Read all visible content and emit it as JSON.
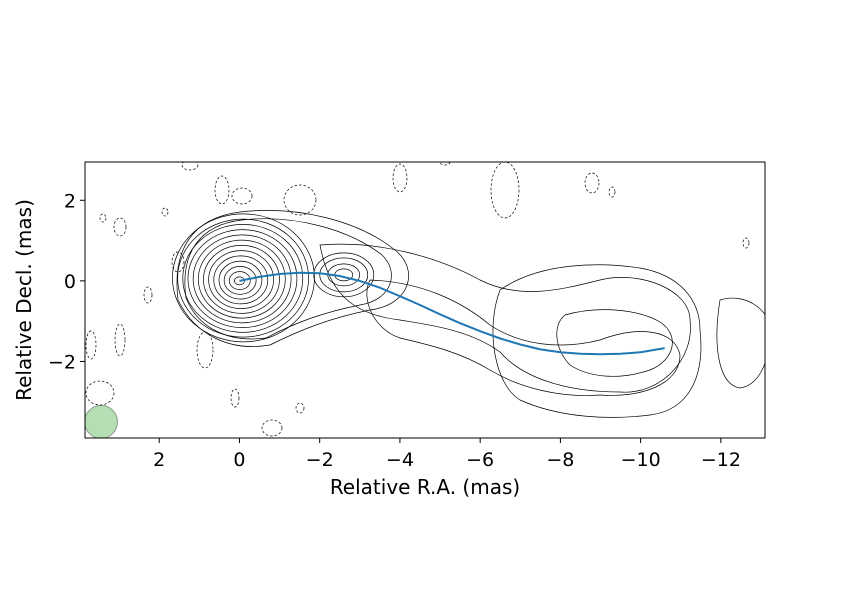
{
  "chart_data": {
    "type": "contour",
    "xlabel": "Relative R.A. (mas)",
    "ylabel": "Relative Decl. (mas)",
    "xlim": [
      3.85,
      -13.1
    ],
    "ylim": [
      -3.9,
      2.95
    ],
    "x_ticks": [
      {
        "value": 2,
        "label": "2"
      },
      {
        "value": 0,
        "label": "0"
      },
      {
        "value": -2,
        "label": "−2"
      },
      {
        "value": -4,
        "label": "−4"
      },
      {
        "value": -6,
        "label": "−6"
      },
      {
        "value": -8,
        "label": "−8"
      },
      {
        "value": -10,
        "label": "−10"
      },
      {
        "value": -12,
        "label": "−12"
      }
    ],
    "y_ticks": [
      {
        "value": 2,
        "label": "2"
      },
      {
        "value": 0,
        "label": "0"
      },
      {
        "value": -2,
        "label": "−2"
      }
    ],
    "grid": false,
    "core": {
      "x": 0,
      "y": 0
    },
    "knot": {
      "x": -2.6,
      "y": 0.05
    },
    "ridge_line": {
      "color": "#1f77b4",
      "x": [
        0,
        -0.5,
        -1,
        -1.5,
        -2,
        -2.5,
        -3,
        -3.5,
        -4,
        -4.5,
        -5,
        -5.5,
        -6,
        -6.5,
        -7,
        -7.5,
        -8,
        -8.5,
        -9,
        -9.5,
        -10,
        -10.6
      ],
      "y": [
        0,
        0.1,
        0.17,
        0.2,
        0.19,
        0.12,
        0,
        -0.17,
        -0.38,
        -0.6,
        -0.83,
        -1.05,
        -1.25,
        -1.43,
        -1.58,
        -1.7,
        -1.77,
        -1.81,
        -1.82,
        -1.81,
        -1.77,
        -1.67
      ]
    },
    "beam": {
      "x": 3.45,
      "y": -3.5,
      "color": "#2ca02c",
      "alpha": 0.35
    }
  }
}
